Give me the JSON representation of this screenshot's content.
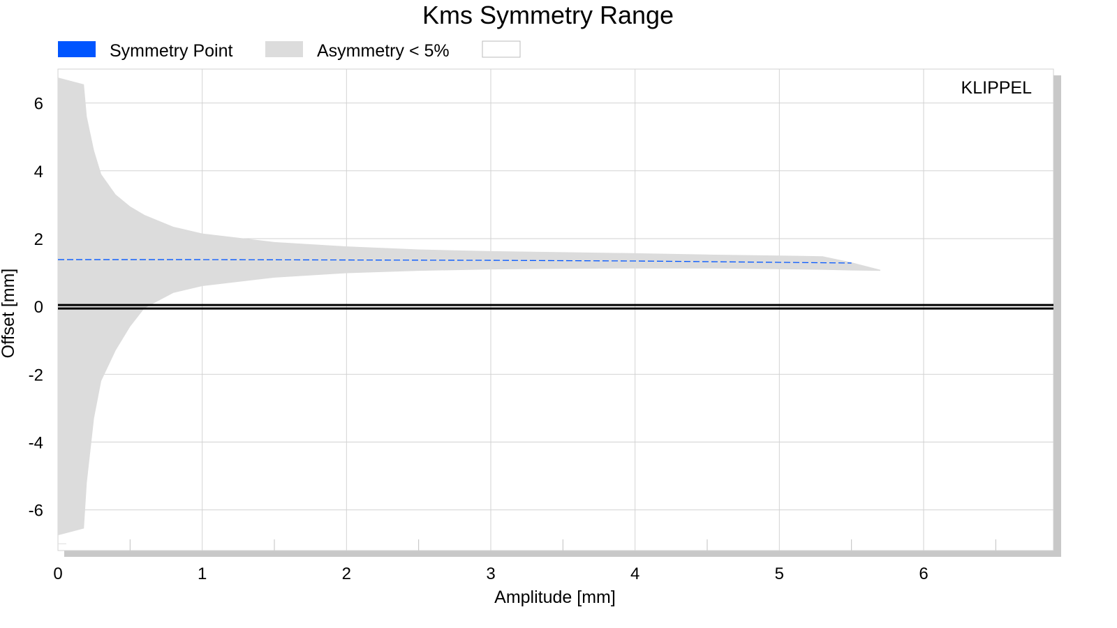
{
  "chart_data": {
    "type": "area",
    "title": "Kms Symmetry Range",
    "xlabel": "Amplitude [mm]",
    "ylabel": "Offset [mm]",
    "xlim": [
      0,
      6.9
    ],
    "ylim": [
      -7.2,
      7.0
    ],
    "x_ticks": [
      "0",
      "1",
      "2",
      "3",
      "4",
      "5",
      "6"
    ],
    "y_ticks": [
      "6",
      "4",
      "2",
      "0",
      "-2",
      "-4",
      "-6"
    ],
    "grid": true,
    "legend_position": "top",
    "legend": [
      {
        "label": "Symmetry Point",
        "color": "#0055ff"
      },
      {
        "label": "Asymmetry < 5%",
        "color": "#dcdcdc"
      },
      {
        "label": "",
        "color": "#ffffff"
      }
    ],
    "watermark": "KLIPPEL",
    "watermark_color": "#1f3f9a",
    "band": {
      "x": [
        0,
        0.18,
        0.2,
        0.25,
        0.3,
        0.4,
        0.5,
        0.6,
        0.8,
        1.0,
        1.5,
        2.0,
        2.5,
        3.0,
        3.5,
        4.0,
        4.5,
        5.0,
        5.3,
        5.5,
        5.7
      ],
      "upper": [
        6.75,
        6.55,
        5.6,
        4.6,
        3.9,
        3.3,
        2.95,
        2.7,
        2.35,
        2.15,
        1.9,
        1.77,
        1.68,
        1.63,
        1.6,
        1.57,
        1.53,
        1.5,
        1.48,
        1.3,
        1.08
      ],
      "lower": [
        -6.75,
        -6.55,
        -5.2,
        -3.3,
        -2.2,
        -1.3,
        -0.6,
        -0.05,
        0.4,
        0.6,
        0.85,
        0.98,
        1.05,
        1.09,
        1.11,
        1.12,
        1.12,
        1.1,
        1.08,
        1.06,
        1.05
      ]
    },
    "series": [
      {
        "name": "Symmetry Point",
        "color": "#0055ff",
        "x": [
          0.0,
          1.0,
          2.0,
          3.0,
          4.0,
          5.0,
          5.5
        ],
        "y": [
          1.38,
          1.38,
          1.37,
          1.36,
          1.34,
          1.3,
          1.28
        ]
      }
    ],
    "zero_line": 0
  }
}
